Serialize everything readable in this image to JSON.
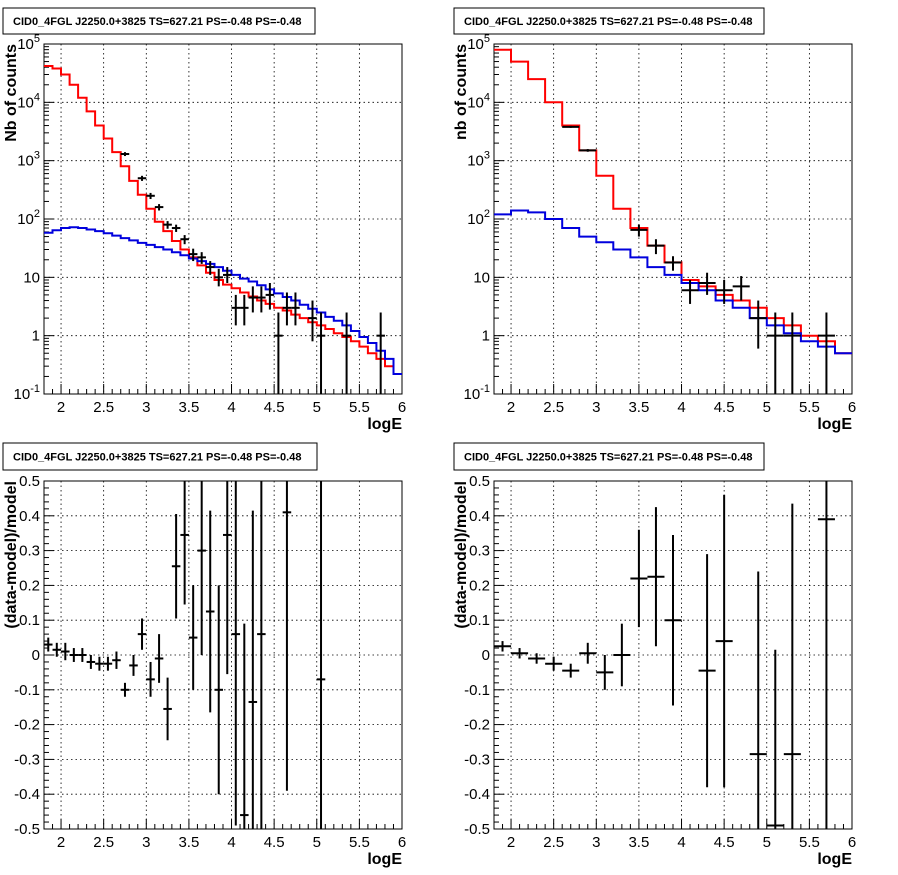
{
  "chart_data": [
    {
      "type": "histogram",
      "title": "CID0_4FGL J2250.0+3825 TS=627.21 PS=-0.48 PS=-0.48",
      "xlabel": "logE",
      "ylabel": "Nb of counts",
      "xlim": [
        1.8,
        6.0
      ],
      "ylim": [
        0.1,
        100000
      ],
      "yscale": "log",
      "grid": true,
      "xticks": [
        "2",
        "2.5",
        "3",
        "3.5",
        "4",
        "4.5",
        "5",
        "5.5",
        "6"
      ],
      "yticks": [
        "10^-1",
        "1",
        "10",
        "10^2",
        "10^3",
        "10^4",
        "10^5"
      ],
      "bin_edges": [
        1.8,
        1.9,
        2.0,
        2.1,
        2.2,
        2.3,
        2.4,
        2.5,
        2.6,
        2.7,
        2.8,
        2.9,
        3.0,
        3.1,
        3.2,
        3.3,
        3.4,
        3.5,
        3.6,
        3.7,
        3.8,
        3.9,
        4.0,
        4.1,
        4.2,
        4.3,
        4.4,
        4.5,
        4.6,
        4.7,
        4.8,
        4.9,
        5.0,
        5.1,
        5.2,
        5.3,
        5.4,
        5.5,
        5.6,
        5.7,
        5.8,
        5.9,
        6.0
      ],
      "series": [
        {
          "color": "#ff0000",
          "values": [
            42000,
            38000,
            30000,
            20000,
            12000,
            7000,
            4000,
            2400,
            1400,
            800,
            450,
            260,
            150,
            90,
            62,
            42,
            30,
            22,
            16,
            12,
            9,
            7.5,
            6.5,
            5.5,
            4.7,
            4.0,
            3.5,
            3.0,
            2.7,
            2.3,
            2.0,
            1.7,
            1.5,
            1.3,
            1.1,
            0.95,
            0.8,
            0.65,
            0.5,
            0.4,
            0.3,
            0.22
          ]
        },
        {
          "color": "#0000dd",
          "values": [
            58,
            64,
            70,
            72,
            70,
            66,
            62,
            57,
            52,
            47,
            43,
            39,
            36,
            33,
            30,
            27,
            24,
            21,
            19,
            17,
            15,
            13,
            11,
            9.5,
            8.5,
            7.3,
            6.2,
            5.3,
            4.6,
            4.0,
            3.4,
            2.9,
            2.5,
            2.1,
            1.8,
            1.5,
            1.2,
            0.95,
            0.75,
            0.55,
            0.4,
            0.22
          ]
        }
      ],
      "points": [
        {
          "x": 2.75,
          "y": 1300,
          "xe": 0.05,
          "el": 100,
          "eh": 100
        },
        {
          "x": 2.95,
          "y": 500,
          "xe": 0.05,
          "el": 50,
          "eh": 50
        },
        {
          "x": 3.05,
          "y": 250,
          "xe": 0.05,
          "el": 30,
          "eh": 30
        },
        {
          "x": 3.15,
          "y": 160,
          "xe": 0.05,
          "el": 20,
          "eh": 20
        },
        {
          "x": 3.25,
          "y": 80,
          "xe": 0.05,
          "el": 12,
          "eh": 12
        },
        {
          "x": 3.35,
          "y": 70,
          "xe": 0.05,
          "el": 10,
          "eh": 10
        },
        {
          "x": 3.45,
          "y": 45,
          "xe": 0.05,
          "el": 8,
          "eh": 8
        },
        {
          "x": 3.55,
          "y": 25,
          "xe": 0.05,
          "el": 6,
          "eh": 6
        },
        {
          "x": 3.65,
          "y": 22,
          "xe": 0.05,
          "el": 5,
          "eh": 5
        },
        {
          "x": 3.75,
          "y": 15,
          "xe": 0.05,
          "el": 4,
          "eh": 4
        },
        {
          "x": 3.85,
          "y": 10,
          "xe": 0.05,
          "el": 3,
          "eh": 4
        },
        {
          "x": 3.95,
          "y": 11,
          "xe": 0.05,
          "el": 3,
          "eh": 4
        },
        {
          "x": 4.05,
          "y": 3,
          "xe": 0.05,
          "el": 1.5,
          "eh": 2
        },
        {
          "x": 4.15,
          "y": 3,
          "xe": 0.05,
          "el": 1.5,
          "eh": 2
        },
        {
          "x": 4.25,
          "y": 4.5,
          "xe": 0.05,
          "el": 2,
          "eh": 2.5
        },
        {
          "x": 4.35,
          "y": 4.5,
          "xe": 0.05,
          "el": 2,
          "eh": 2.5
        },
        {
          "x": 4.45,
          "y": 5,
          "xe": 0.05,
          "el": 2.2,
          "eh": 3
        },
        {
          "x": 4.55,
          "y": 1,
          "xe": 0.05,
          "el": 0.9,
          "eh": 1.5
        },
        {
          "x": 4.65,
          "y": 3,
          "xe": 0.05,
          "el": 1.5,
          "eh": 2.5
        },
        {
          "x": 4.75,
          "y": 3,
          "xe": 0.05,
          "el": 1.5,
          "eh": 2.5
        },
        {
          "x": 4.95,
          "y": 2,
          "xe": 0.05,
          "el": 1.2,
          "eh": 2
        },
        {
          "x": 5.05,
          "y": 1,
          "xe": 0.05,
          "el": 0.9,
          "eh": 1.5
        },
        {
          "x": 5.35,
          "y": 1,
          "xe": 0.05,
          "el": 0.9,
          "eh": 1.5
        },
        {
          "x": 5.75,
          "y": 1,
          "xe": 0.05,
          "el": 0.9,
          "eh": 1.5
        }
      ]
    },
    {
      "type": "histogram",
      "title": "CID0_4FGL J2250.0+3825 TS=627.21 PS=-0.48 PS=-0.48",
      "xlabel": "logE",
      "ylabel": "nb of counts",
      "xlim": [
        1.8,
        6.0
      ],
      "ylim": [
        0.1,
        100000
      ],
      "yscale": "log",
      "grid": true,
      "xticks": [
        "2",
        "2.5",
        "3",
        "3.5",
        "4",
        "4.5",
        "5",
        "5.5",
        "6"
      ],
      "yticks": [
        "10^-1",
        "1",
        "10",
        "10^2",
        "10^3",
        "10^4",
        "10^5"
      ],
      "bin_edges": [
        1.8,
        2.0,
        2.2,
        2.4,
        2.6,
        2.8,
        3.0,
        3.2,
        3.4,
        3.6,
        3.8,
        4.0,
        4.2,
        4.4,
        4.6,
        4.8,
        5.0,
        5.2,
        5.4,
        5.6,
        5.8,
        6.0
      ],
      "series": [
        {
          "color": "#ff0000",
          "values": [
            80000,
            50000,
            25000,
            10000,
            4000,
            1500,
            550,
            150,
            70,
            35,
            18,
            9,
            7,
            5,
            4,
            3,
            2,
            1.5,
            1,
            0.8,
            0.5
          ]
        },
        {
          "color": "#0000dd",
          "values": [
            120,
            140,
            130,
            100,
            70,
            50,
            40,
            30,
            22,
            15,
            11,
            8,
            6,
            4,
            3,
            2,
            1.5,
            1.1,
            0.8,
            0.65,
            0.5
          ]
        }
      ],
      "points": [
        {
          "x": 2.7,
          "y": 3800,
          "xe": 0.1,
          "el": 150,
          "eh": 150
        },
        {
          "x": 2.9,
          "y": 1500,
          "xe": 0.1,
          "el": 80,
          "eh": 80
        },
        {
          "x": 3.5,
          "y": 65,
          "xe": 0.1,
          "el": 15,
          "eh": 15
        },
        {
          "x": 3.7,
          "y": 35,
          "xe": 0.1,
          "el": 10,
          "eh": 10
        },
        {
          "x": 3.9,
          "y": 18,
          "xe": 0.1,
          "el": 5,
          "eh": 5
        },
        {
          "x": 4.1,
          "y": 6,
          "xe": 0.1,
          "el": 2.5,
          "eh": 3
        },
        {
          "x": 4.3,
          "y": 8,
          "xe": 0.1,
          "el": 3,
          "eh": 4
        },
        {
          "x": 4.5,
          "y": 6,
          "xe": 0.1,
          "el": 2.5,
          "eh": 3
        },
        {
          "x": 4.7,
          "y": 7,
          "xe": 0.1,
          "el": 3,
          "eh": 3.5
        },
        {
          "x": 4.9,
          "y": 2,
          "xe": 0.1,
          "el": 1.4,
          "eh": 2
        },
        {
          "x": 5.1,
          "y": 1,
          "xe": 0.1,
          "el": 0.9,
          "eh": 1.5
        },
        {
          "x": 5.3,
          "y": 1,
          "xe": 0.1,
          "el": 0.9,
          "eh": 1.5
        },
        {
          "x": 5.7,
          "y": 1,
          "xe": 0.1,
          "el": 0.9,
          "eh": 1.5
        }
      ]
    },
    {
      "type": "scatter",
      "title": "CID0_4FGL J2250.0+3825 TS=627.21 PS=-0.48 PS=-0.48",
      "xlabel": "logE",
      "ylabel": "(data-model)/model",
      "xlim": [
        1.8,
        6.0
      ],
      "ylim": [
        -0.5,
        0.5
      ],
      "grid": true,
      "xticks": [
        "2",
        "2.5",
        "3",
        "3.5",
        "4",
        "4.5",
        "5",
        "5.5",
        "6"
      ],
      "yticks": [
        "-0.5",
        "-0.4",
        "-0.3",
        "-0.2",
        "-0.1",
        "0",
        "0.1",
        "0.2",
        "0.3",
        "0.4",
        "0.5"
      ],
      "points": [
        {
          "x": 1.85,
          "y": 0.03,
          "xe": 0.05,
          "e": 0.02
        },
        {
          "x": 1.95,
          "y": 0.015,
          "xe": 0.05,
          "e": 0.02
        },
        {
          "x": 2.05,
          "y": 0.01,
          "xe": 0.05,
          "e": 0.025
        },
        {
          "x": 2.15,
          "y": 0.0,
          "xe": 0.05,
          "e": 0.02
        },
        {
          "x": 2.25,
          "y": 0.0,
          "xe": 0.05,
          "e": 0.02
        },
        {
          "x": 2.35,
          "y": -0.02,
          "xe": 0.05,
          "e": 0.02
        },
        {
          "x": 2.45,
          "y": -0.025,
          "xe": 0.05,
          "e": 0.02
        },
        {
          "x": 2.55,
          "y": -0.025,
          "xe": 0.05,
          "e": 0.02
        },
        {
          "x": 2.65,
          "y": -0.015,
          "xe": 0.05,
          "e": 0.025
        },
        {
          "x": 2.75,
          "y": -0.1,
          "xe": 0.05,
          "e": 0.02
        },
        {
          "x": 2.85,
          "y": -0.03,
          "xe": 0.05,
          "e": 0.03
        },
        {
          "x": 2.95,
          "y": 0.06,
          "xe": 0.05,
          "e": 0.045
        },
        {
          "x": 3.05,
          "y": -0.07,
          "xe": 0.05,
          "e": 0.05
        },
        {
          "x": 3.15,
          "y": -0.01,
          "xe": 0.05,
          "e": 0.07
        },
        {
          "x": 3.25,
          "y": -0.155,
          "xe": 0.05,
          "e": 0.09
        },
        {
          "x": 3.35,
          "y": 0.255,
          "xe": 0.05,
          "e": 0.15
        },
        {
          "x": 3.45,
          "y": 0.345,
          "xe": 0.05,
          "e": 0.2
        },
        {
          "x": 3.55,
          "y": 0.05,
          "xe": 0.05,
          "e": 0.15
        },
        {
          "x": 3.65,
          "y": 0.3,
          "xe": 0.05,
          "e": 0.3
        },
        {
          "x": 3.75,
          "y": 0.125,
          "xe": 0.05,
          "e": 0.29
        },
        {
          "x": 3.85,
          "y": -0.1,
          "xe": 0.05,
          "e": 0.3
        },
        {
          "x": 3.95,
          "y": 0.345,
          "xe": 0.05,
          "e": 0.4
        },
        {
          "x": 4.05,
          "y": 0.06,
          "xe": 0.05,
          "e": 0.55
        },
        {
          "x": 4.15,
          "y": -0.46,
          "xe": 0.05,
          "e": 0.55
        },
        {
          "x": 4.25,
          "y": -0.135,
          "xe": 0.05,
          "e": 0.55
        },
        {
          "x": 4.35,
          "y": 0.06,
          "xe": 0.05,
          "e": 0.8
        },
        {
          "x": 4.65,
          "y": 0.41,
          "xe": 0.05,
          "e": 0.8
        },
        {
          "x": 5.05,
          "y": -0.07,
          "xe": 0.05,
          "e": 1.2
        }
      ]
    },
    {
      "type": "scatter",
      "title": "CID0_4FGL J2250.0+3825 TS=627.21 PS=-0.48 PS=-0.48",
      "xlabel": "logE",
      "ylabel": "(data-model)/model",
      "xlim": [
        1.8,
        6.0
      ],
      "ylim": [
        -0.5,
        0.5
      ],
      "grid": true,
      "xticks": [
        "2",
        "2.5",
        "3",
        "3.5",
        "4",
        "4.5",
        "5",
        "5.5",
        "6"
      ],
      "yticks": [
        "-0.5",
        "-0.4",
        "-0.3",
        "-0.2",
        "-0.1",
        "0",
        "0.1",
        "0.2",
        "0.3",
        "0.4",
        "0.5"
      ],
      "points": [
        {
          "x": 1.9,
          "y": 0.025,
          "xe": 0.1,
          "e": 0.015
        },
        {
          "x": 2.1,
          "y": 0.005,
          "xe": 0.1,
          "e": 0.015
        },
        {
          "x": 2.3,
          "y": -0.01,
          "xe": 0.1,
          "e": 0.015
        },
        {
          "x": 2.5,
          "y": -0.025,
          "xe": 0.1,
          "e": 0.02
        },
        {
          "x": 2.7,
          "y": -0.045,
          "xe": 0.1,
          "e": 0.02
        },
        {
          "x": 2.9,
          "y": 0.005,
          "xe": 0.1,
          "e": 0.03
        },
        {
          "x": 3.1,
          "y": -0.05,
          "xe": 0.1,
          "e": 0.05
        },
        {
          "x": 3.3,
          "y": 0.0,
          "xe": 0.1,
          "e": 0.09
        },
        {
          "x": 3.5,
          "y": 0.22,
          "xe": 0.1,
          "e": 0.14
        },
        {
          "x": 3.7,
          "y": 0.225,
          "xe": 0.1,
          "e": 0.2
        },
        {
          "x": 3.9,
          "y": 0.1,
          "xe": 0.1,
          "e": 0.245
        },
        {
          "x": 4.3,
          "y": -0.045,
          "xe": 0.1,
          "e": 0.335
        },
        {
          "x": 4.5,
          "y": 0.04,
          "xe": 0.1,
          "e": 0.42
        },
        {
          "x": 4.9,
          "y": -0.285,
          "xe": 0.1,
          "e": 0.525
        },
        {
          "x": 5.1,
          "y": -0.49,
          "xe": 0.1,
          "e": 0.505
        },
        {
          "x": 5.3,
          "y": -0.285,
          "xe": 0.1,
          "e": 0.72
        },
        {
          "x": 5.7,
          "y": 0.39,
          "xe": 0.1,
          "e": 0.9
        }
      ]
    }
  ]
}
